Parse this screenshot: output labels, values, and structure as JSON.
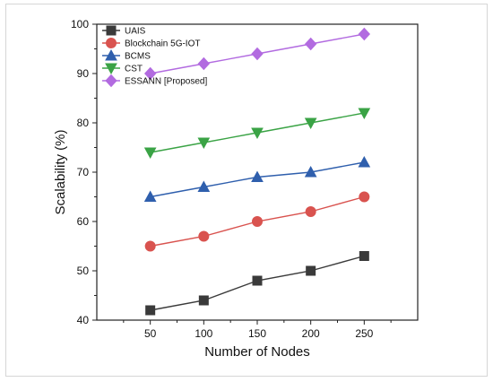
{
  "chart_data": {
    "type": "line",
    "title": "",
    "xlabel": "Number of Nodes",
    "ylabel": "Scalability (%)",
    "x": [
      50,
      100,
      150,
      200,
      250
    ],
    "xlim": [
      0,
      300
    ],
    "ylim": [
      40,
      100
    ],
    "yticks": [
      40,
      50,
      60,
      70,
      80,
      90,
      100
    ],
    "grid": false,
    "legend_position": "top-left",
    "series": [
      {
        "name": "UAIS",
        "values": [
          42,
          44,
          48,
          50,
          53
        ],
        "color": "#3a3a3a",
        "marker": "square"
      },
      {
        "name": "Blockchain 5G-IOT",
        "values": [
          55,
          57,
          60,
          62,
          65
        ],
        "color": "#d9534f",
        "marker": "circle"
      },
      {
        "name": "BCMS",
        "values": [
          65,
          67,
          69,
          70,
          72
        ],
        "color": "#2f5fad",
        "marker": "triangle-up"
      },
      {
        "name": "CST",
        "values": [
          74,
          76,
          78,
          80,
          82
        ],
        "color": "#3aa345",
        "marker": "triangle-down"
      },
      {
        "name": "ESSANN [Proposed]",
        "values": [
          90,
          92,
          94,
          96,
          98
        ],
        "color": "#b26be0",
        "marker": "diamond"
      }
    ]
  }
}
